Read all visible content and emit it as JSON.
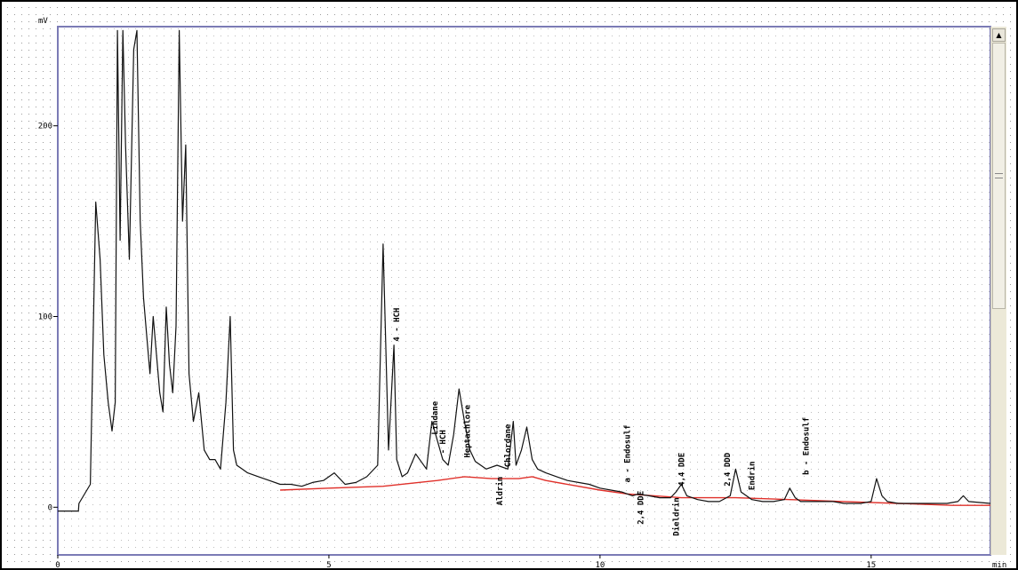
{
  "chart_data": {
    "type": "line",
    "xlabel": "min",
    "ylabel": "mV",
    "xlim": [
      0,
      17.2
    ],
    "ylim": [
      -25,
      252
    ],
    "x_ticks": [
      0,
      5,
      10,
      15
    ],
    "y_ticks": [
      0,
      100,
      200
    ],
    "grid": true,
    "colors": {
      "plot_border": "#7b7bb5",
      "trace": "#111111",
      "baseline": "#e0302a",
      "grid": "#9a9a9a"
    },
    "series": [
      {
        "values_x": [
          0,
          0.38,
          0.39,
          0.6,
          0.7,
          0.78,
          0.85,
          0.93,
          1.0,
          1.06,
          1.1,
          1.15,
          1.2,
          1.25,
          1.32,
          1.4,
          1.46,
          1.52,
          1.58,
          1.64,
          1.7,
          1.76,
          1.82,
          1.88,
          1.94,
          2.0,
          2.06,
          2.12,
          2.18,
          2.24,
          2.3,
          2.36,
          2.42,
          2.5,
          2.6,
          2.7,
          2.8,
          2.9,
          3.0,
          3.1,
          3.18,
          3.24,
          3.3,
          3.4,
          3.5,
          3.7,
          3.9,
          4.1,
          4.3,
          4.5,
          4.7,
          4.9,
          5.1,
          5.3,
          5.5,
          5.7,
          5.9,
          6.0,
          6.1,
          6.2,
          6.25,
          6.35,
          6.45,
          6.6,
          6.8,
          6.9,
          7.0,
          7.1,
          7.2,
          7.3,
          7.4,
          7.5,
          7.6,
          7.7,
          7.9,
          8.1,
          8.3,
          8.4,
          8.45,
          8.55,
          8.65,
          8.75,
          8.85,
          9.0,
          9.2,
          9.4,
          9.6,
          9.8,
          10.0,
          10.2,
          10.4,
          10.5,
          10.6,
          10.7,
          10.9,
          11.1,
          11.3,
          11.4,
          11.5,
          11.6,
          11.8,
          12.0,
          12.2,
          12.4,
          12.5,
          12.6,
          12.8,
          13.0,
          13.2,
          13.4,
          13.5,
          13.6,
          13.7,
          13.9,
          14.1,
          14.3,
          14.5,
          14.8,
          15.0,
          15.1,
          15.2,
          15.3,
          15.5,
          15.8,
          16.1,
          16.4,
          16.6,
          16.7,
          16.8,
          17.2
        ],
        "values_y": [
          -2,
          -2,
          2,
          12,
          160,
          130,
          80,
          55,
          40,
          55,
          250,
          140,
          250,
          190,
          130,
          240,
          250,
          150,
          110,
          90,
          70,
          100,
          80,
          60,
          50,
          105,
          75,
          60,
          95,
          250,
          150,
          190,
          70,
          45,
          60,
          30,
          25,
          25,
          20,
          55,
          100,
          30,
          22,
          20,
          18,
          16,
          14,
          12,
          12,
          11,
          13,
          14,
          18,
          12,
          13,
          16,
          22,
          138,
          30,
          85,
          25,
          16,
          18,
          28,
          20,
          45,
          35,
          25,
          22,
          38,
          62,
          45,
          30,
          24,
          20,
          22,
          20,
          45,
          22,
          30,
          42,
          25,
          20,
          18,
          16,
          14,
          13,
          12,
          10,
          9,
          8,
          7,
          6,
          7,
          6,
          5,
          5,
          8,
          12,
          6,
          4,
          3,
          3,
          6,
          20,
          8,
          4,
          3,
          3,
          4,
          10,
          5,
          3,
          3,
          3,
          3,
          2,
          2,
          3,
          15,
          6,
          3,
          2,
          2,
          2,
          2,
          3,
          6,
          3,
          2
        ]
      },
      {
        "values_x": [
          4.1,
          5.0,
          6.0,
          7.0,
          7.5,
          8.0,
          8.5,
          8.75,
          9.0,
          10.0,
          10.5,
          11.0,
          11.5,
          12.5,
          13.5,
          14.5,
          15.5,
          16.5,
          17.2
        ],
        "values_y": [
          9,
          10,
          11,
          14,
          16,
          15,
          15,
          16,
          14,
          9,
          7,
          6,
          5,
          5,
          4,
          3,
          2,
          1,
          1
        ]
      }
    ],
    "annotations": [
      {
        "text": "4 - HCH",
        "x": 6.25,
        "y": 86
      },
      {
        "text": "Lindane",
        "x": 6.95,
        "y": 37
      },
      {
        "text": "- HCH",
        "x": 7.1,
        "y": 27
      },
      {
        "text": "Heptachlore",
        "x": 7.55,
        "y": 25
      },
      {
        "text": "Aldrin",
        "x": 8.15,
        "y": 0
      },
      {
        "text": "Chlordane",
        "x": 8.3,
        "y": 20
      },
      {
        "text": "a - Endosulf",
        "x": 10.5,
        "y": 12
      },
      {
        "text": "2,4 DDE",
        "x": 10.75,
        "y": -10
      },
      {
        "text": "Dieldrin",
        "x": 11.4,
        "y": -16
      },
      {
        "text": "4,4 DDE",
        "x": 11.5,
        "y": 10
      },
      {
        "text": "2,4 DDD",
        "x": 12.35,
        "y": 10
      },
      {
        "text": "Endrin",
        "x": 12.8,
        "y": 8
      },
      {
        "text": "b - Endosulf",
        "x": 13.8,
        "y": 16
      }
    ]
  },
  "scrollbar": {
    "up_arrow": "▲"
  }
}
